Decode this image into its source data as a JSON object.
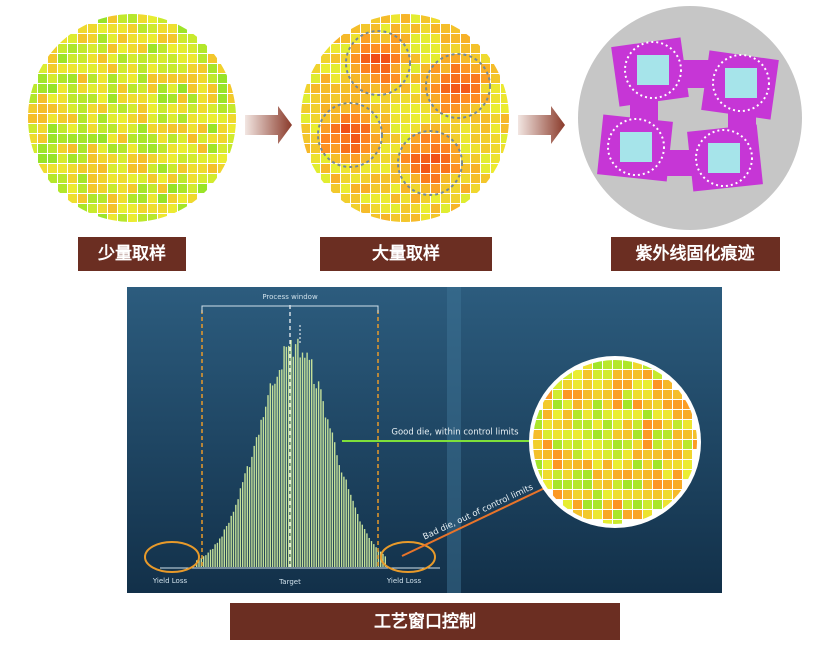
{
  "labels": {
    "few": "少量取样",
    "many": "大量取样",
    "uv": "紫外线固化痕迹",
    "window": "工艺窗口控制"
  },
  "chart": {
    "process_window": "Process window",
    "good_die": "Good die, within control limits",
    "bad_die": "Bad die, out of control limits",
    "yield_loss_left": "Yield Loss",
    "target": "Target",
    "yield_loss_right": "Yield Loss"
  }
}
